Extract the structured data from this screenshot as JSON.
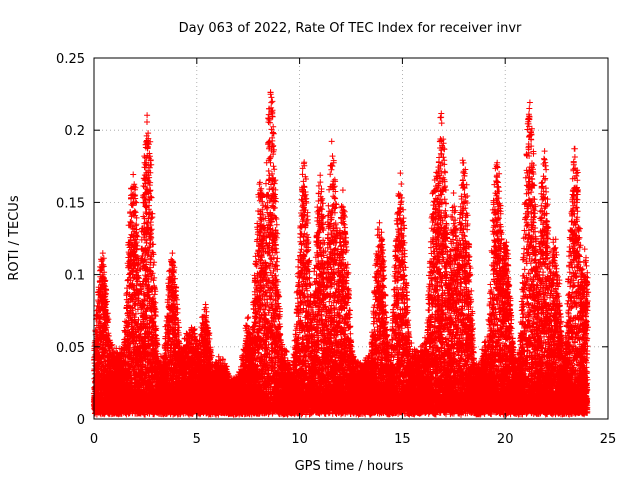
{
  "chart_data": {
    "type": "scatter",
    "title": "Day 063 of 2022, Rate Of TEC Index for receiver invr",
    "xlabel": "GPS time / hours",
    "ylabel": "ROTI / TECUs",
    "xlim": [
      0,
      25
    ],
    "ylim": [
      0,
      0.25
    ],
    "xticks": [
      0,
      5,
      10,
      15,
      20,
      25
    ],
    "yticks": [
      0,
      0.05,
      0.1,
      0.15,
      0.2,
      0.25
    ],
    "xtick_labels": [
      "0",
      "5",
      "10",
      "15",
      "20",
      "25"
    ],
    "ytick_labels": [
      "0",
      "0.05",
      "0.1",
      "0.15",
      "0.2",
      "0.25"
    ],
    "grid": true,
    "marker": "plus",
    "color": "#ff0000",
    "noise_floor": 0.003,
    "point_density_per_hour": 1100,
    "activity_peaks": [
      {
        "t": 0.4,
        "max": 0.11
      },
      {
        "t": 1.9,
        "max": 0.165
      },
      {
        "t": 2.6,
        "max": 0.205
      },
      {
        "t": 3.8,
        "max": 0.11
      },
      {
        "t": 5.4,
        "max": 0.07
      },
      {
        "t": 7.5,
        "max": 0.06
      },
      {
        "t": 8.1,
        "max": 0.16
      },
      {
        "t": 8.6,
        "max": 0.224
      },
      {
        "t": 10.2,
        "max": 0.17
      },
      {
        "t": 11.0,
        "max": 0.165
      },
      {
        "t": 11.6,
        "max": 0.185
      },
      {
        "t": 12.1,
        "max": 0.148
      },
      {
        "t": 13.9,
        "max": 0.13
      },
      {
        "t": 14.9,
        "max": 0.165
      },
      {
        "t": 16.6,
        "max": 0.165
      },
      {
        "t": 16.9,
        "max": 0.207
      },
      {
        "t": 17.5,
        "max": 0.148
      },
      {
        "t": 18.0,
        "max": 0.178
      },
      {
        "t": 19.6,
        "max": 0.177
      },
      {
        "t": 20.0,
        "max": 0.12
      },
      {
        "t": 21.2,
        "max": 0.215
      },
      {
        "t": 21.9,
        "max": 0.178
      },
      {
        "t": 22.4,
        "max": 0.12
      },
      {
        "t": 23.4,
        "max": 0.181
      },
      {
        "t": 23.9,
        "max": 0.11
      }
    ]
  }
}
